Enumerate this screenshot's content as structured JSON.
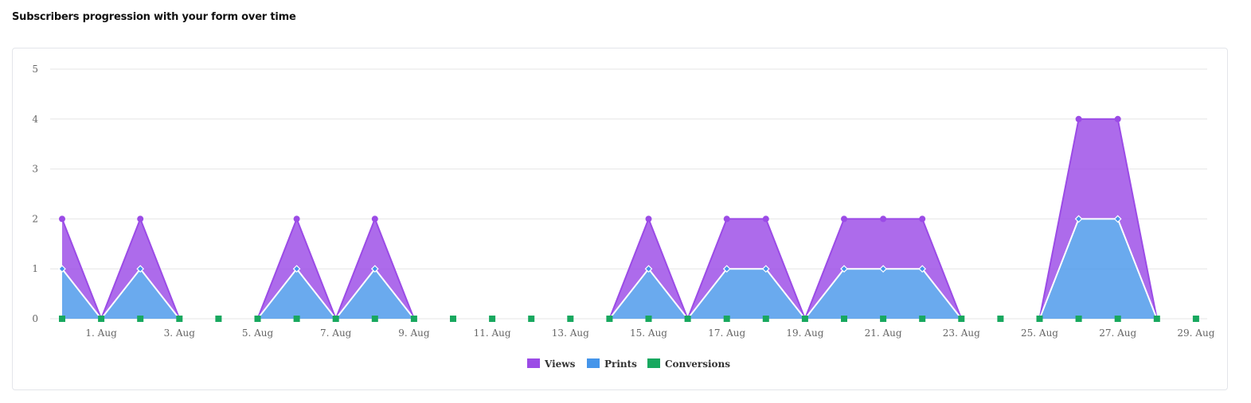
{
  "header": {
    "title": "Subscribers progression with your form over time"
  },
  "colors": {
    "views": "#9b4be6",
    "prints": "#4595ea",
    "conversions": "#18a85f",
    "grid": "#e6e6e6"
  },
  "chart_data": {
    "type": "area",
    "title": "",
    "xlabel": "",
    "ylabel": "",
    "ylim": [
      0,
      5
    ],
    "yticks": [
      "0",
      "1",
      "2",
      "3",
      "4",
      "5"
    ],
    "x": [
      "31. Jul",
      "1. Aug",
      "2. Aug",
      "3. Aug",
      "4. Aug",
      "5. Aug",
      "6. Aug",
      "7. Aug",
      "8. Aug",
      "9. Aug",
      "10. Aug",
      "11. Aug",
      "12. Aug",
      "13. Aug",
      "14. Aug",
      "15. Aug",
      "16. Aug",
      "17. Aug",
      "18. Aug",
      "19. Aug",
      "20. Aug",
      "21. Aug",
      "22. Aug",
      "23. Aug",
      "24. Aug",
      "25. Aug",
      "26. Aug",
      "27. Aug",
      "28. Aug",
      "29. Aug"
    ],
    "xtick_labels": [
      "1. Aug",
      "3. Aug",
      "5. Aug",
      "7. Aug",
      "9. Aug",
      "11. Aug",
      "13. Aug",
      "15. Aug",
      "17. Aug",
      "19. Aug",
      "21. Aug",
      "23. Aug",
      "25. Aug",
      "27. Aug",
      "29. Aug"
    ],
    "stacked": true,
    "grid": true,
    "legend_position": "bottom-center",
    "series": [
      {
        "name": "Views",
        "values": [
          1,
          0,
          1,
          0,
          null,
          0,
          1,
          0,
          1,
          0,
          null,
          null,
          null,
          null,
          0,
          1,
          0,
          1,
          1,
          0,
          1,
          1,
          1,
          0,
          null,
          0,
          2,
          2,
          0,
          null
        ]
      },
      {
        "name": "Prints",
        "values": [
          1,
          0,
          1,
          0,
          null,
          0,
          1,
          0,
          1,
          0,
          null,
          null,
          null,
          null,
          0,
          1,
          0,
          1,
          1,
          0,
          1,
          1,
          1,
          0,
          null,
          0,
          2,
          2,
          0,
          null
        ]
      },
      {
        "name": "Conversions",
        "values": [
          0,
          0,
          0,
          0,
          0,
          0,
          0,
          0,
          0,
          0,
          0,
          0,
          0,
          0,
          0,
          0,
          0,
          0,
          0,
          0,
          0,
          0,
          0,
          0,
          0,
          0,
          0,
          0,
          0,
          0
        ]
      }
    ]
  }
}
